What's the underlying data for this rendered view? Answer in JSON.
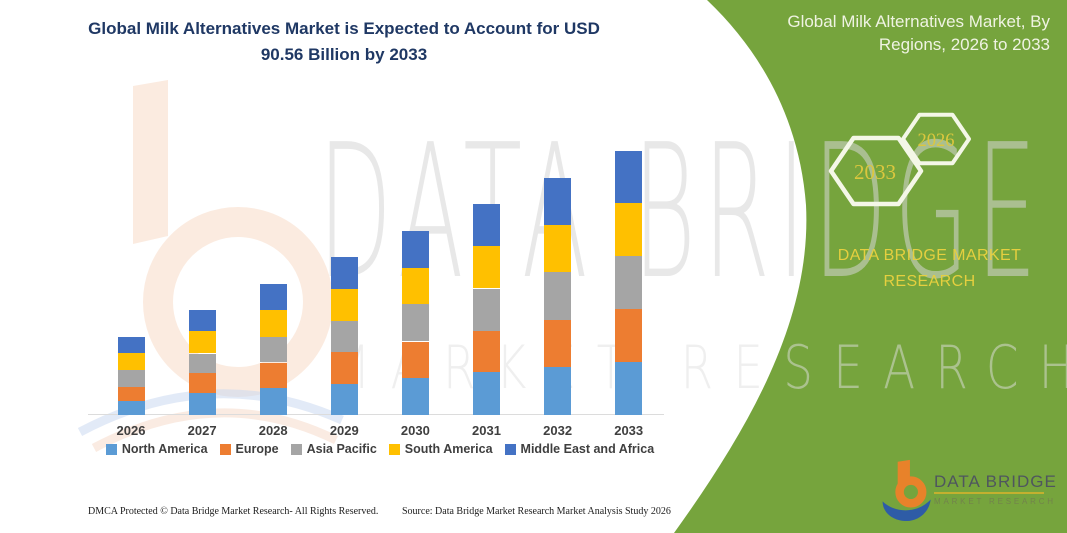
{
  "title": "Global Milk Alternatives Market is Expected to Account for USD 90.56 Billion by 2033",
  "side_panel": {
    "title": "Global Milk Alternatives Market, By Regions, 2026 to 2033",
    "hexagon_back_label": "2026",
    "hexagon_front_label": "2033",
    "brand_line1": "DATA BRIDGE MARKET",
    "brand_line2": "RESEARCH",
    "background_color": "#76A43D",
    "accent_text_color": "#E5CF3F"
  },
  "watermark": {
    "line1": "DATA BRIDGE",
    "line2": "MARKET RESEARCH"
  },
  "logo": {
    "title": "DATA BRIDGE",
    "subtitle": "MARKET RESEARCH"
  },
  "footer": {
    "dmca": "DMCA Protected © Data Bridge Market Research-  All Rights Reserved.",
    "source": "Source: Data Bridge Market Research  Market Analysis Study 2026"
  },
  "chart_data": {
    "type": "bar",
    "stacked": true,
    "unit": "USD Billion",
    "title": "Global Milk Alternatives Market, By Regions, 2026 to 2033",
    "xlabel": "",
    "ylabel": "",
    "y_axis_visible": false,
    "gridlines": false,
    "legend_position": "bottom",
    "categories": [
      "2026",
      "2027",
      "2028",
      "2029",
      "2030",
      "2031",
      "2032",
      "2033"
    ],
    "series": [
      {
        "name": "North America",
        "color": "#5B9BD5",
        "values": [
          4.7,
          7.4,
          9.3,
          10.5,
          12.8,
          14.6,
          16.4,
          18.3
        ]
      },
      {
        "name": "Europe",
        "color": "#ED7D31",
        "values": [
          4.8,
          7.1,
          8.7,
          11.2,
          12.4,
          14.3,
          16.1,
          18.2
        ]
      },
      {
        "name": "Asia Pacific",
        "color": "#A5A5A5",
        "values": [
          5.9,
          6.6,
          8.9,
          10.6,
          12.9,
          14.5,
          16.4,
          18.0
        ]
      },
      {
        "name": "South America",
        "color": "#FFC000",
        "values": [
          5.8,
          7.7,
          9.1,
          10.8,
          12.3,
          14.6,
          16.2,
          18.1
        ]
      },
      {
        "name": "Middle East and Africa",
        "color": "#4472C4",
        "values": [
          5.7,
          7.2,
          8.9,
          11.1,
          12.7,
          14.4,
          16.2,
          17.96
        ]
      }
    ],
    "totals": [
      26.9,
      36.0,
      44.9,
      54.2,
      63.1,
      72.4,
      81.3,
      90.56
    ],
    "highlight_value": "USD 90.56 Billion by 2033"
  }
}
